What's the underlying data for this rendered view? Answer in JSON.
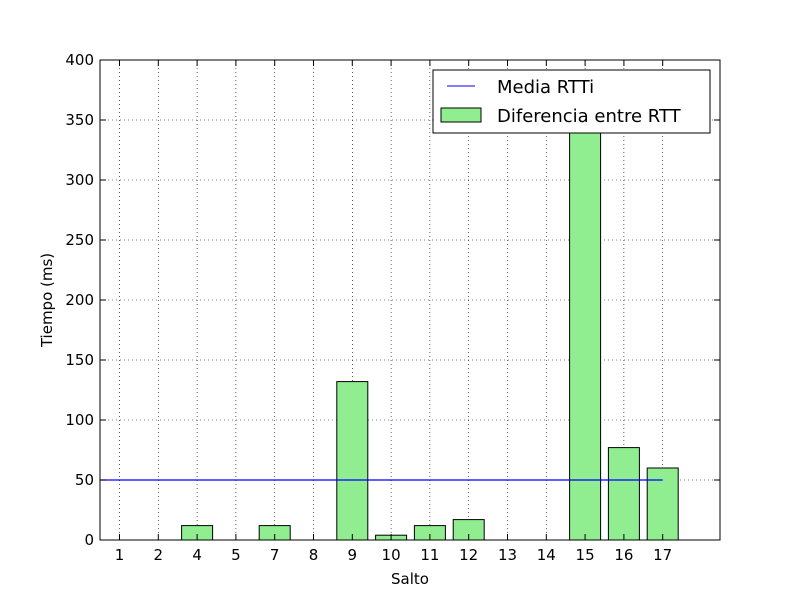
{
  "chart_data": {
    "type": "bar",
    "title": "",
    "xlabel": "Salto",
    "ylabel": "Tiempo (ms)",
    "categories": [
      "1",
      "2",
      "4",
      "5",
      "7",
      "8",
      "9",
      "10",
      "11",
      "12",
      "13",
      "14",
      "15",
      "16",
      "17"
    ],
    "series": [
      {
        "name": "Diferencia entre RTT",
        "color": "#90ee90",
        "values": [
          0,
          0,
          12,
          0,
          12,
          0,
          132,
          4,
          12,
          17,
          0,
          0,
          370,
          77,
          60
        ]
      }
    ],
    "reference_lines": [
      {
        "name": "Media RTTi",
        "value": 50,
        "color": "#0000ff"
      }
    ],
    "ylim": [
      0,
      400
    ],
    "yticks": [
      0,
      50,
      100,
      150,
      200,
      250,
      300,
      350,
      400
    ],
    "grid": true,
    "legend_position": "top-right"
  }
}
